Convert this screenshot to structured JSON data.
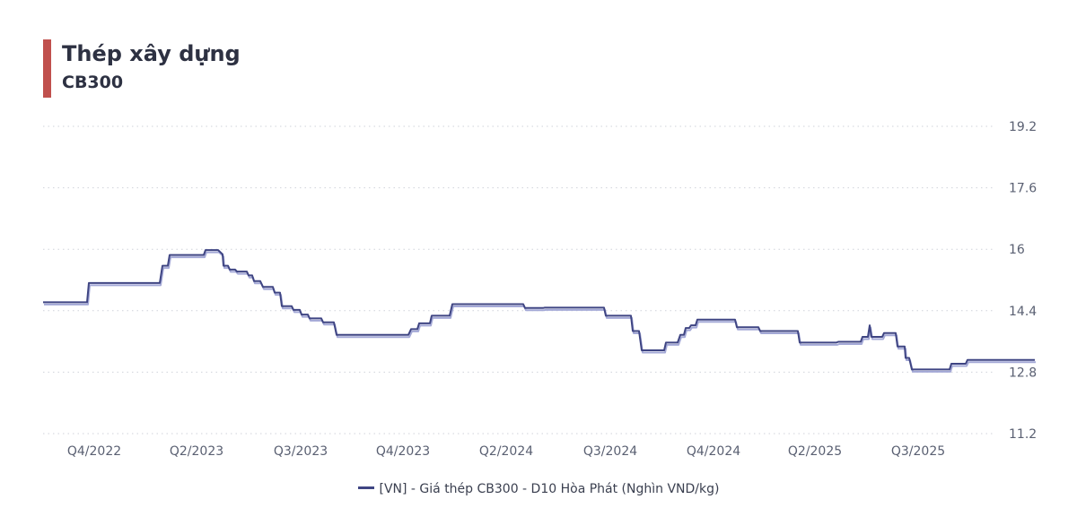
{
  "header": {
    "title": "Thép xây dựng",
    "subtitle": "CB300",
    "accent_color": "#c0504d"
  },
  "chart_data": {
    "type": "line",
    "x_tick_labels": [
      "Q4/2022",
      "Q2/2023",
      "Q3/2023",
      "Q4/2023",
      "Q2/2024",
      "Q3/2024",
      "Q4/2024",
      "Q2/2025",
      "Q3/2025"
    ],
    "y_ticks": [
      11.2,
      12.8,
      14.4,
      16,
      17.6,
      19.2
    ],
    "ylim": [
      11.2,
      19.2
    ],
    "grid": true,
    "legend_position": "bottom-center",
    "series": [
      {
        "name": "[VN] - Giá thép CB300 - D10 Hòa Phát (Nghìn VND/kg)",
        "color": "#3f4583",
        "shadow_color": "#a3a8d6",
        "points": [
          [
            0,
            14.62
          ],
          [
            49,
            14.62
          ],
          [
            51,
            15.12
          ],
          [
            130,
            15.12
          ],
          [
            133,
            15.57
          ],
          [
            139,
            15.57
          ],
          [
            141,
            15.85
          ],
          [
            179,
            15.85
          ],
          [
            181,
            15.98
          ],
          [
            195,
            15.98
          ],
          [
            200,
            15.87
          ],
          [
            201,
            15.57
          ],
          [
            206,
            15.57
          ],
          [
            208,
            15.47
          ],
          [
            214,
            15.47
          ],
          [
            216,
            15.42
          ],
          [
            227,
            15.42
          ],
          [
            229,
            15.32
          ],
          [
            233,
            15.32
          ],
          [
            235,
            15.17
          ],
          [
            242,
            15.17
          ],
          [
            245,
            15.02
          ],
          [
            256,
            15.02
          ],
          [
            258,
            14.87
          ],
          [
            264,
            14.87
          ],
          [
            266,
            14.52
          ],
          [
            277,
            14.52
          ],
          [
            279,
            14.42
          ],
          [
            286,
            14.42
          ],
          [
            288,
            14.3
          ],
          [
            295,
            14.3
          ],
          [
            297,
            14.2
          ],
          [
            310,
            14.2
          ],
          [
            312,
            14.1
          ],
          [
            324,
            14.1
          ],
          [
            327,
            13.77
          ],
          [
            407,
            13.77
          ],
          [
            410,
            13.92
          ],
          [
            417,
            13.92
          ],
          [
            419,
            14.07
          ],
          [
            431,
            14.07
          ],
          [
            433,
            14.27
          ],
          [
            453,
            14.27
          ],
          [
            456,
            14.57
          ],
          [
            535,
            14.57
          ],
          [
            537,
            14.47
          ],
          [
            557,
            14.47
          ],
          [
            559,
            14.48
          ],
          [
            625,
            14.48
          ],
          [
            627,
            14.27
          ],
          [
            655,
            14.27
          ],
          [
            657,
            13.87
          ],
          [
            664,
            13.87
          ],
          [
            667,
            13.37
          ],
          [
            692,
            13.37
          ],
          [
            694,
            13.57
          ],
          [
            707,
            13.57
          ],
          [
            710,
            13.77
          ],
          [
            714,
            13.77
          ],
          [
            716,
            13.95
          ],
          [
            720,
            13.95
          ],
          [
            722,
            14.02
          ],
          [
            727,
            14.02
          ],
          [
            729,
            14.17
          ],
          [
            771,
            14.17
          ],
          [
            773,
            13.97
          ],
          [
            797,
            13.97
          ],
          [
            799,
            13.87
          ],
          [
            841,
            13.87
          ],
          [
            843,
            13.57
          ],
          [
            884,
            13.57
          ],
          [
            886,
            13.59
          ],
          [
            911,
            13.59
          ],
          [
            913,
            13.72
          ],
          [
            919,
            13.72
          ],
          [
            921,
            14.02
          ],
          [
            923,
            13.72
          ],
          [
            935,
            13.72
          ],
          [
            937,
            13.82
          ],
          [
            950,
            13.82
          ],
          [
            952,
            13.47
          ],
          [
            960,
            13.47
          ],
          [
            961,
            13.17
          ],
          [
            965,
            13.17
          ],
          [
            968,
            12.87
          ],
          [
            1010,
            12.87
          ],
          [
            1012,
            13.02
          ],
          [
            1028,
            13.02
          ],
          [
            1030,
            13.12
          ],
          [
            1105,
            13.12
          ]
        ]
      }
    ]
  }
}
